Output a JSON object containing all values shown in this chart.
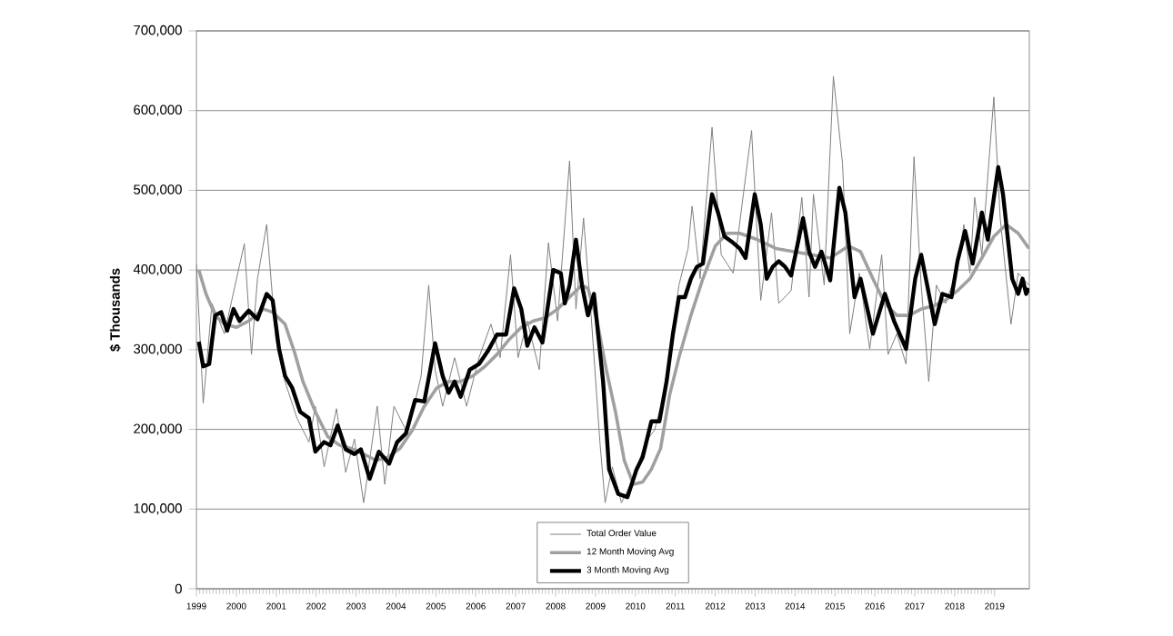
{
  "chart_data": {
    "type": "line",
    "ylabel": "$ Thousands",
    "xlim": [
      1999,
      2019.87
    ],
    "ylim": [
      0,
      700000
    ],
    "xticks": [
      1999,
      2000,
      2001,
      2002,
      2003,
      2004,
      2005,
      2006,
      2007,
      2008,
      2009,
      2010,
      2011,
      2012,
      2013,
      2014,
      2015,
      2016,
      2017,
      2018,
      2019
    ],
    "yticks": [
      0,
      {
        "value": 100000,
        "label": "100,000"
      },
      {
        "value": 200000,
        "label": "200,000"
      },
      {
        "value": 300000,
        "label": "300,000"
      },
      {
        "value": 400000,
        "label": "400,000"
      },
      {
        "value": 500000,
        "label": "500,000"
      },
      {
        "value": 600000,
        "label": "600,000"
      },
      {
        "value": 700000,
        "label": "700,000"
      }
    ],
    "grid": "y",
    "legend": "bottom",
    "marker": "none",
    "series": [
      {
        "name": "Total Order Value",
        "color": "#808080",
        "x": [
          1999.0,
          1999.17,
          1999.39,
          1999.7,
          2000.2,
          2000.38,
          2000.53,
          2000.76,
          2000.99,
          2001.22,
          2001.52,
          2001.82,
          2001.98,
          2002.2,
          2002.51,
          2002.74,
          2002.96,
          2003.19,
          2003.53,
          2003.72,
          2003.95,
          2004.25,
          2004.44,
          2004.63,
          2004.82,
          2004.98,
          2005.17,
          2005.47,
          2005.77,
          2006.08,
          2006.38,
          2006.61,
          2006.87,
          2007.06,
          2007.29,
          2007.59,
          2007.82,
          2008.05,
          2008.35,
          2008.51,
          2008.7,
          2008.89,
          2009.11,
          2009.24,
          2009.42,
          2009.65,
          2009.95,
          2010.25,
          2010.48,
          2010.71,
          2011.09,
          2011.32,
          2011.42,
          2011.62,
          2011.92,
          2012.15,
          2012.45,
          2012.91,
          2013.14,
          2013.41,
          2013.59,
          2013.9,
          2014.17,
          2014.35,
          2014.46,
          2014.73,
          2014.96,
          2015.19,
          2015.37,
          2015.61,
          2015.87,
          2016.17,
          2016.33,
          2016.55,
          2016.78,
          2016.98,
          2017.16,
          2017.35,
          2017.54,
          2017.77,
          2018.04,
          2018.23,
          2018.38,
          2018.5,
          2018.68,
          2018.98,
          2019.14,
          2019.41,
          2019.59,
          2019.86
        ],
        "values": [
          408000,
          233000,
          358000,
          320000,
          433000,
          294000,
          389000,
          457000,
          313000,
          260000,
          214000,
          184000,
          229000,
          153000,
          226000,
          146000,
          188000,
          108000,
          229000,
          131000,
          229000,
          199000,
          226000,
          267000,
          381000,
          275000,
          229000,
          290000,
          229000,
          290000,
          332000,
          290000,
          419000,
          290000,
          336000,
          275000,
          434000,
          336000,
          537000,
          351000,
          465000,
          343000,
          184000,
          108000,
          153000,
          108000,
          138000,
          184000,
          199000,
          244000,
          381000,
          427000,
          480000,
          389000,
          579000,
          419000,
          396000,
          575000,
          362000,
          472000,
          358000,
          374000,
          491000,
          366000,
          495000,
          381000,
          643000,
          533000,
          320000,
          396000,
          301000,
          419000,
          294000,
          320000,
          282000,
          542000,
          381000,
          260000,
          381000,
          358000,
          396000,
          457000,
          396000,
          491000,
          419000,
          617000,
          465000,
          332000,
          396000,
          381000
        ]
      },
      {
        "name": "12 Month Moving Avg",
        "color": "#a0a0a0",
        "x": [
          1999.06,
          1999.24,
          1999.47,
          1999.7,
          2000.0,
          2000.31,
          2000.68,
          2000.91,
          2001.22,
          2001.45,
          2001.67,
          2001.98,
          2002.29,
          2002.59,
          2002.89,
          2003.19,
          2003.5,
          2003.8,
          2004.1,
          2004.41,
          2004.71,
          2005.02,
          2005.32,
          2005.62,
          2005.92,
          2006.23,
          2006.53,
          2006.84,
          2007.14,
          2007.44,
          2007.74,
          2008.05,
          2008.35,
          2008.66,
          2008.81,
          2009.04,
          2009.27,
          2009.5,
          2009.72,
          2009.95,
          2010.18,
          2010.4,
          2010.63,
          2010.86,
          2011.09,
          2011.39,
          2011.69,
          2012.0,
          2012.3,
          2012.61,
          2013.06,
          2013.52,
          2013.97,
          2014.43,
          2014.88,
          2015.34,
          2015.64,
          2015.95,
          2016.25,
          2016.55,
          2016.86,
          2017.16,
          2017.47,
          2017.77,
          2018.07,
          2018.38,
          2018.68,
          2018.98,
          2019.29,
          2019.59,
          2019.86
        ],
        "values": [
          400000,
          370000,
          343000,
          332000,
          328000,
          336000,
          351000,
          347000,
          332000,
          298000,
          260000,
          222000,
          191000,
          180000,
          176000,
          169000,
          161000,
          165000,
          176000,
          199000,
          229000,
          252000,
          260000,
          260000,
          267000,
          279000,
          294000,
          313000,
          328000,
          336000,
          340000,
          351000,
          366000,
          381000,
          377000,
          336000,
          275000,
          222000,
          161000,
          131000,
          134000,
          150000,
          176000,
          244000,
          290000,
          343000,
          389000,
          430000,
          446000,
          446000,
          438000,
          427000,
          423000,
          419000,
          415000,
          430000,
          423000,
          389000,
          358000,
          343000,
          343000,
          351000,
          355000,
          362000,
          374000,
          389000,
          415000,
          442000,
          457000,
          446000,
          427000
        ]
      },
      {
        "name": "3 Month Moving Avg",
        "color": "#000000",
        "x": [
          1999.06,
          1999.17,
          1999.32,
          1999.47,
          1999.62,
          1999.77,
          1999.93,
          2000.08,
          2000.31,
          2000.53,
          2000.76,
          2000.91,
          2001.07,
          2001.22,
          2001.4,
          2001.6,
          2001.82,
          2001.98,
          2002.2,
          2002.36,
          2002.54,
          2002.74,
          2002.96,
          2003.12,
          2003.34,
          2003.57,
          2003.83,
          2004.03,
          2004.25,
          2004.48,
          2004.71,
          2004.86,
          2004.98,
          2005.17,
          2005.32,
          2005.47,
          2005.62,
          2005.85,
          2006.08,
          2006.3,
          2006.53,
          2006.76,
          2006.96,
          2007.14,
          2007.29,
          2007.47,
          2007.67,
          2007.94,
          2008.13,
          2008.23,
          2008.35,
          2008.51,
          2008.66,
          2008.81,
          2008.96,
          2009.19,
          2009.34,
          2009.57,
          2009.8,
          2010.03,
          2010.18,
          2010.4,
          2010.6,
          2010.78,
          2010.94,
          2011.09,
          2011.24,
          2011.39,
          2011.54,
          2011.69,
          2011.92,
          2012.07,
          2012.23,
          2012.45,
          2012.61,
          2012.76,
          2012.99,
          2013.14,
          2013.29,
          2013.44,
          2013.59,
          2013.75,
          2013.9,
          2014.2,
          2014.35,
          2014.5,
          2014.66,
          2014.88,
          2015.11,
          2015.26,
          2015.49,
          2015.64,
          2015.95,
          2016.25,
          2016.48,
          2016.78,
          2017.01,
          2017.16,
          2017.31,
          2017.5,
          2017.69,
          2017.92,
          2018.07,
          2018.26,
          2018.45,
          2018.68,
          2018.83,
          2019.09,
          2019.21,
          2019.44,
          2019.59,
          2019.7,
          2019.79,
          2019.86
        ],
        "values": [
          310000,
          279000,
          282000,
          343000,
          347000,
          324000,
          351000,
          336000,
          349000,
          338000,
          370000,
          362000,
          301000,
          267000,
          252000,
          222000,
          214000,
          172000,
          184000,
          180000,
          205000,
          175000,
          169000,
          175000,
          138000,
          172000,
          157000,
          184000,
          195000,
          237000,
          235000,
          275000,
          308000,
          267000,
          246000,
          260000,
          241000,
          275000,
          282000,
          298000,
          319000,
          319000,
          377000,
          351000,
          305000,
          328000,
          309000,
          400000,
          396000,
          358000,
          381000,
          438000,
          381000,
          343000,
          370000,
          260000,
          150000,
          119000,
          115000,
          150000,
          165000,
          210000,
          210000,
          260000,
          320000,
          366000,
          366000,
          389000,
          404000,
          408000,
          495000,
          472000,
          442000,
          434000,
          427000,
          415000,
          495000,
          457000,
          389000,
          404000,
          411000,
          404000,
          393000,
          465000,
          423000,
          404000,
          423000,
          387000,
          503000,
          472000,
          366000,
          389000,
          320000,
          370000,
          336000,
          301000,
          389000,
          419000,
          381000,
          332000,
          370000,
          366000,
          411000,
          449000,
          408000,
          472000,
          438000,
          529000,
          495000,
          389000,
          370000,
          389000,
          370000,
          377000
        ]
      }
    ]
  }
}
